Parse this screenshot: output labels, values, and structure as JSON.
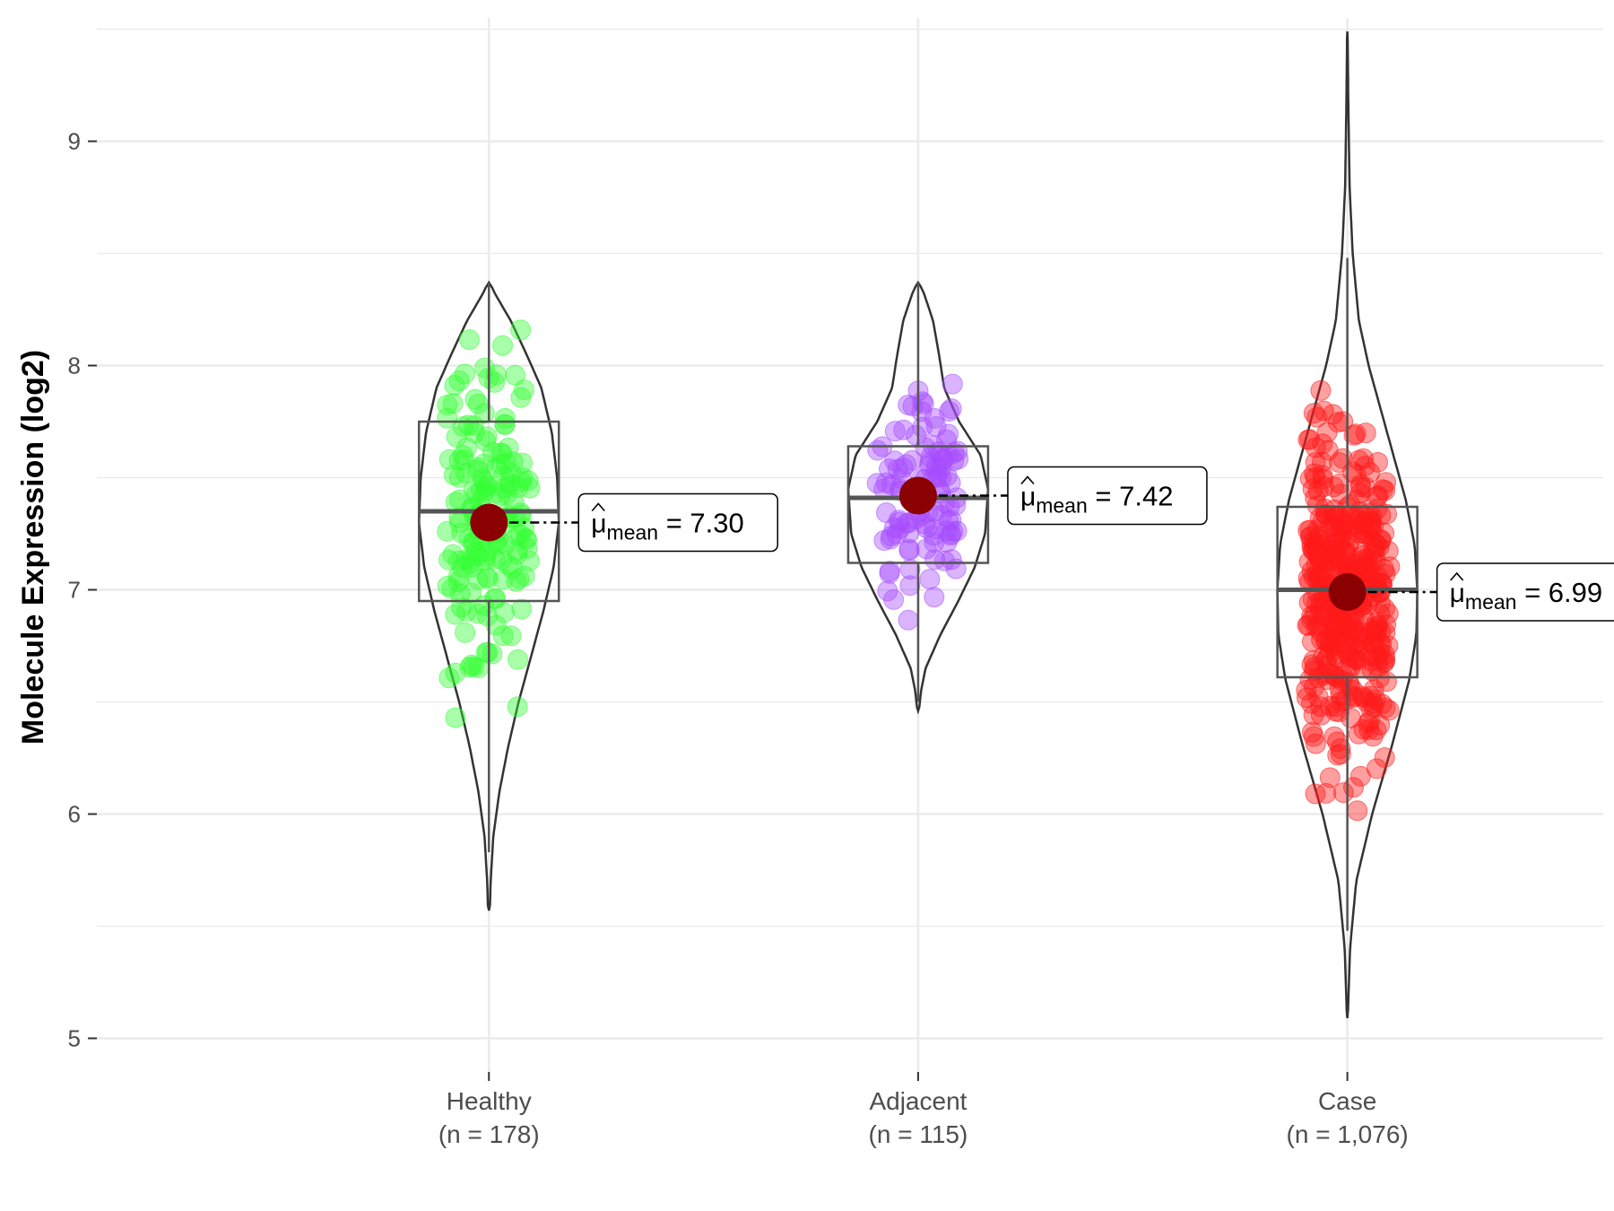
{
  "chart_data": {
    "type": "violin",
    "title": "",
    "xlabel": "",
    "ylabel": "Molecule Expression (log2)",
    "ylim": [
      4.85,
      9.55
    ],
    "yticks": [
      5,
      6,
      7,
      8,
      9
    ],
    "grid": true,
    "legend": "none",
    "mean_symbol": "μ",
    "mean_subscript": "mean",
    "groups": [
      {
        "name": "Healthy",
        "n_label": "(n = 178)",
        "n": 178,
        "color": "#33ff33",
        "mean": 7.3,
        "mean_text": "7.30",
        "box": {
          "q1": 6.95,
          "median": 7.35,
          "q3": 7.75,
          "whisker_low": 5.83,
          "whisker_high": 8.37
        },
        "violin": {
          "min": 5.57,
          "max": 8.37,
          "profile": [
            [
              5.57,
              0.01
            ],
            [
              5.7,
              0.02
            ],
            [
              5.9,
              0.05
            ],
            [
              6.1,
              0.12
            ],
            [
              6.3,
              0.22
            ],
            [
              6.5,
              0.34
            ],
            [
              6.7,
              0.48
            ],
            [
              6.9,
              0.62
            ],
            [
              7.1,
              0.74
            ],
            [
              7.3,
              0.8
            ],
            [
              7.5,
              0.78
            ],
            [
              7.7,
              0.72
            ],
            [
              7.9,
              0.6
            ],
            [
              8.05,
              0.43
            ],
            [
              8.2,
              0.25
            ],
            [
              8.32,
              0.07
            ],
            [
              8.37,
              0.01
            ]
          ]
        }
      },
      {
        "name": "Adjacent",
        "n_label": "(n = 115)",
        "n": 115,
        "color": "#a64dff",
        "mean": 7.42,
        "mean_text": "7.42",
        "box": {
          "q1": 7.12,
          "median": 7.41,
          "q3": 7.64,
          "whisker_low": 6.5,
          "whisker_high": 8.37
        },
        "violin": {
          "min": 6.46,
          "max": 8.37,
          "profile": [
            [
              6.46,
              0.01
            ],
            [
              6.55,
              0.04
            ],
            [
              6.65,
              0.1
            ],
            [
              6.8,
              0.3
            ],
            [
              6.95,
              0.54
            ],
            [
              7.1,
              0.76
            ],
            [
              7.25,
              0.9
            ],
            [
              7.45,
              0.94
            ],
            [
              7.6,
              0.84
            ],
            [
              7.75,
              0.55
            ],
            [
              7.9,
              0.35
            ],
            [
              8.05,
              0.28
            ],
            [
              8.2,
              0.2
            ],
            [
              8.32,
              0.08
            ],
            [
              8.37,
              0.01
            ]
          ]
        }
      },
      {
        "name": "Case",
        "n_label": "(n = 1,076)",
        "n": 1076,
        "color": "#ff1a1a",
        "mean": 6.99,
        "mean_text": "6.99",
        "box": {
          "q1": 6.61,
          "median": 7.0,
          "q3": 7.37,
          "whisker_low": 5.48,
          "whisker_high": 8.48
        },
        "violin": {
          "min": 5.09,
          "max": 9.49,
          "profile": [
            [
              5.09,
              0.005
            ],
            [
              5.4,
              0.03
            ],
            [
              5.7,
              0.1
            ],
            [
              6.0,
              0.28
            ],
            [
              6.3,
              0.5
            ],
            [
              6.6,
              0.7
            ],
            [
              6.8,
              0.78
            ],
            [
              7.0,
              0.79
            ],
            [
              7.2,
              0.76
            ],
            [
              7.4,
              0.66
            ],
            [
              7.6,
              0.52
            ],
            [
              7.8,
              0.38
            ],
            [
              8.0,
              0.24
            ],
            [
              8.2,
              0.13
            ],
            [
              8.5,
              0.06
            ],
            [
              8.8,
              0.025
            ],
            [
              9.2,
              0.01
            ],
            [
              9.49,
              0.003
            ]
          ]
        }
      }
    ]
  }
}
